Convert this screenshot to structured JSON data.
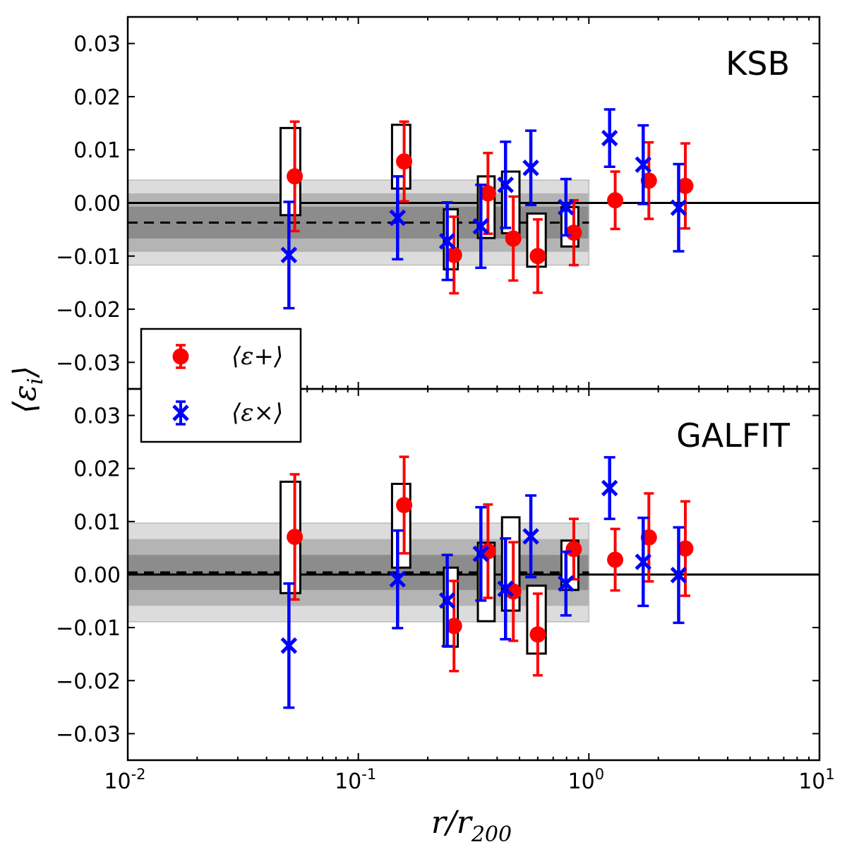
{
  "chart_data": [
    {
      "type": "scatter",
      "panel": "top",
      "label": "KSB",
      "xscale": "log",
      "xlim": [
        0.01,
        10
      ],
      "ylim": [
        -0.035,
        0.035
      ],
      "xlabel": "r/r200",
      "ylabel": "⟨εi⟩",
      "yticks": [
        "0.03",
        "0.02",
        "0.01",
        "0.00",
        "−0.01",
        "−0.02",
        "−0.03"
      ],
      "reference_line": 0.0,
      "mean_line": {
        "value": -0.0037,
        "x_range": [
          0.01,
          1.0
        ]
      },
      "bands": [
        {
          "name": "outer",
          "range": [
            -0.0117,
            0.0043
          ],
          "color": "#dcdcdc"
        },
        {
          "name": "middle",
          "range": [
            -0.0092,
            0.0018
          ],
          "color": "#b4b4b4"
        },
        {
          "name": "inner",
          "range": [
            -0.0067,
            -0.0007
          ],
          "color": "#8c8c8c"
        }
      ],
      "series": [
        {
          "name": "eps_plus",
          "label": "⟨ε+⟩",
          "color": "#ff0000",
          "marker": "circle",
          "x": [
            0.053,
            0.158,
            0.26,
            0.365,
            0.47,
            0.6,
            0.86,
            1.3,
            1.82,
            2.62
          ],
          "y": [
            0.005,
            0.0078,
            -0.0098,
            0.0018,
            -0.0067,
            -0.01,
            -0.0056,
            0.0005,
            0.0042,
            0.0032
          ],
          "err": [
            0.0103,
            0.0075,
            0.0072,
            0.0076,
            0.0079,
            0.0069,
            0.0061,
            0.0054,
            0.0072,
            0.008
          ]
        },
        {
          "name": "eps_cross",
          "label": "⟨ε×⟩",
          "color": "#0000ff",
          "marker": "x",
          "x": [
            0.05,
            0.148,
            0.243,
            0.34,
            0.435,
            0.56,
            0.795,
            1.23,
            1.72,
            2.45
          ],
          "y": [
            -0.0098,
            -0.0028,
            -0.0072,
            -0.0044,
            0.0034,
            0.0066,
            -0.0008,
            0.0122,
            0.0072,
            -0.0009
          ],
          "err": [
            0.01,
            0.0078,
            0.0073,
            0.0078,
            0.0081,
            0.007,
            0.0053,
            0.0054,
            0.0074,
            0.0082
          ]
        }
      ],
      "boxes": [
        {
          "x": [
            0.046,
            0.056
          ],
          "y": [
            -0.0023,
            0.0141
          ]
        },
        {
          "x": [
            0.14,
            0.168
          ],
          "y": [
            0.0027,
            0.0147
          ]
        },
        {
          "x": [
            0.235,
            0.27
          ],
          "y": [
            -0.0125,
            -0.0012
          ]
        },
        {
          "x": [
            0.33,
            0.39
          ],
          "y": [
            -0.0066,
            0.005
          ]
        },
        {
          "x": [
            0.42,
            0.5
          ],
          "y": [
            -0.0057,
            0.0059
          ]
        },
        {
          "x": [
            0.54,
            0.65
          ],
          "y": [
            -0.012,
            -0.002
          ]
        },
        {
          "x": [
            0.76,
            0.9
          ],
          "y": [
            -0.0082,
            -0.0008
          ]
        }
      ]
    },
    {
      "type": "scatter",
      "panel": "bottom",
      "label": "GALFIT",
      "xscale": "log",
      "xlim": [
        0.01,
        10
      ],
      "ylim": [
        -0.035,
        0.035
      ],
      "xlabel": "r/r200",
      "ylabel": "⟨εi⟩",
      "yticks": [
        "0.03",
        "0.02",
        "0.01",
        "0.00",
        "−0.01",
        "−0.02",
        "−0.03"
      ],
      "xticks": [
        {
          "value": 0.01,
          "base": "10",
          "exp": "-2"
        },
        {
          "value": 0.1,
          "base": "10",
          "exp": "-1"
        },
        {
          "value": 1,
          "base": "10",
          "exp": "0"
        },
        {
          "value": 10,
          "base": "10",
          "exp": "1"
        }
      ],
      "reference_line": 0.0,
      "mean_line": {
        "value": 0.0004,
        "x_range": [
          0.01,
          1.0
        ]
      },
      "bands": [
        {
          "name": "outer",
          "range": [
            -0.0089,
            0.0097
          ],
          "color": "#dcdcdc"
        },
        {
          "name": "middle",
          "range": [
            -0.0059,
            0.0067
          ],
          "color": "#b4b4b4"
        },
        {
          "name": "inner",
          "range": [
            -0.0029,
            0.0037
          ],
          "color": "#8c8c8c"
        }
      ],
      "series": [
        {
          "name": "eps_plus",
          "label": "⟨ε+⟩",
          "color": "#ff0000",
          "marker": "circle",
          "x": [
            0.053,
            0.158,
            0.26,
            0.365,
            0.47,
            0.6,
            0.86,
            1.3,
            1.82,
            2.62
          ],
          "y": [
            0.0071,
            0.0131,
            -0.0097,
            0.0044,
            -0.0032,
            -0.0113,
            0.0048,
            0.0028,
            0.007,
            0.0049
          ],
          "err": [
            0.0118,
            0.0091,
            0.0085,
            0.0088,
            0.0093,
            0.0077,
            0.0057,
            0.0058,
            0.0083,
            0.0089
          ]
        },
        {
          "name": "eps_cross",
          "label": "⟨ε×⟩",
          "color": "#0000ff",
          "marker": "x",
          "x": [
            0.05,
            0.148,
            0.243,
            0.34,
            0.435,
            0.56,
            0.795,
            1.23,
            1.72,
            2.45
          ],
          "y": [
            -0.0134,
            -0.0009,
            -0.0049,
            0.0039,
            -0.0027,
            0.0072,
            -0.0017,
            0.0163,
            0.0024,
            -0.0001
          ],
          "err": [
            0.0117,
            0.0092,
            0.0086,
            0.0088,
            0.0095,
            0.0077,
            0.006,
            0.0058,
            0.0083,
            0.009
          ]
        }
      ],
      "boxes": [
        {
          "x": [
            0.046,
            0.056
          ],
          "y": [
            -0.0035,
            0.0175
          ]
        },
        {
          "x": [
            0.14,
            0.168
          ],
          "y": [
            0.0013,
            0.0171
          ]
        },
        {
          "x": [
            0.235,
            0.27
          ],
          "y": [
            -0.0136,
            0.0013
          ]
        },
        {
          "x": [
            0.33,
            0.39
          ],
          "y": [
            -0.0088,
            0.006
          ]
        },
        {
          "x": [
            0.42,
            0.5
          ],
          "y": [
            -0.0068,
            0.0108
          ]
        },
        {
          "x": [
            0.54,
            0.65
          ],
          "y": [
            -0.0149,
            -0.0021
          ]
        },
        {
          "x": [
            0.76,
            0.9
          ],
          "y": [
            -0.0029,
            0.0064
          ]
        }
      ]
    }
  ],
  "axes": {
    "xlabel": {
      "base": "r/r",
      "sub": "200"
    },
    "ylabel": {
      "base": "⟨ε",
      "sub": "i",
      "close": "⟩"
    }
  },
  "legend": {
    "placement": "left, spanning both panels",
    "entries": [
      {
        "label": "⟨ε+⟩",
        "series": "eps_plus",
        "color": "#ff0000"
      },
      {
        "label": "⟨ε×⟩",
        "series": "eps_cross",
        "color": "#0000ff"
      }
    ]
  }
}
